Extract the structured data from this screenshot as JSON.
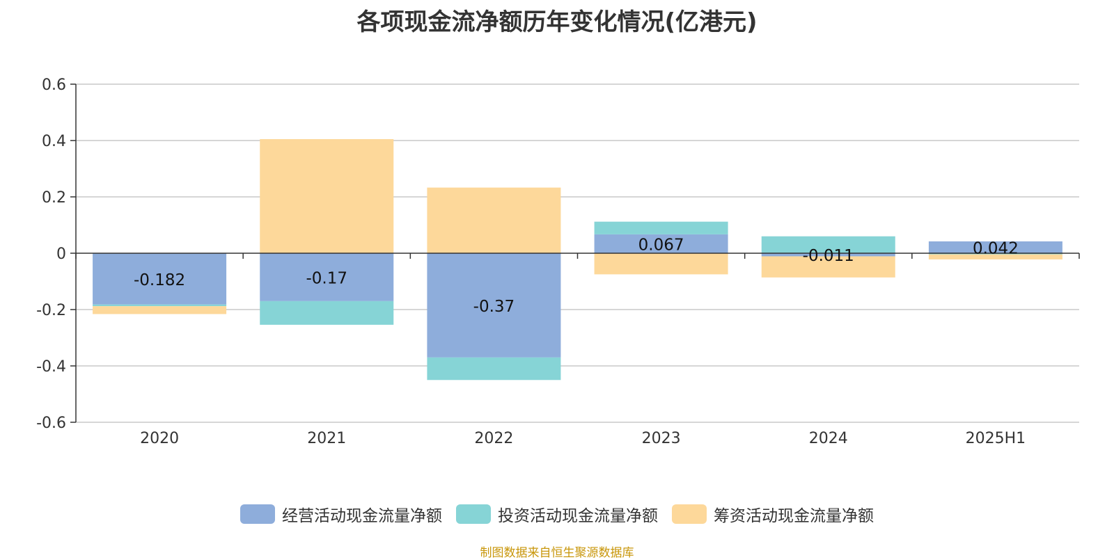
{
  "chart_data": {
    "type": "bar",
    "stacked": true,
    "title": "各项现金流净额历年变化情况(亿港元)",
    "categories": [
      "2020",
      "2021",
      "2022",
      "2023",
      "2024",
      "2025H1"
    ],
    "ylim": [
      -0.6,
      0.6
    ],
    "yticks": [
      0.6,
      0.4,
      0.2,
      0,
      -0.2,
      -0.4,
      -0.6
    ],
    "ytick_labels": [
      "0.6",
      "0.4",
      "0.2",
      "0",
      "-0.2",
      "-0.4",
      "-0.6"
    ],
    "grid": true,
    "legend_position": "bottom",
    "series": [
      {
        "name": "经营活动现金流量净额",
        "color": "#8eaddb",
        "values": [
          -0.182,
          -0.17,
          -0.37,
          0.067,
          -0.011,
          0.042
        ],
        "labels": [
          "-0.182",
          "-0.17",
          "-0.37",
          "0.067",
          "-0.011",
          "0.042"
        ]
      },
      {
        "name": "投资活动现金流量净额",
        "color": "#86d4d6",
        "values": [
          -0.006,
          -0.084,
          -0.08,
          0.045,
          0.06,
          -0.004
        ]
      },
      {
        "name": "筹资活动现金流量净额",
        "color": "#fdd89a",
        "values": [
          -0.028,
          0.405,
          0.233,
          -0.075,
          -0.075,
          -0.018
        ]
      }
    ]
  },
  "source_note": "制图数据来自恒生聚源数据库"
}
